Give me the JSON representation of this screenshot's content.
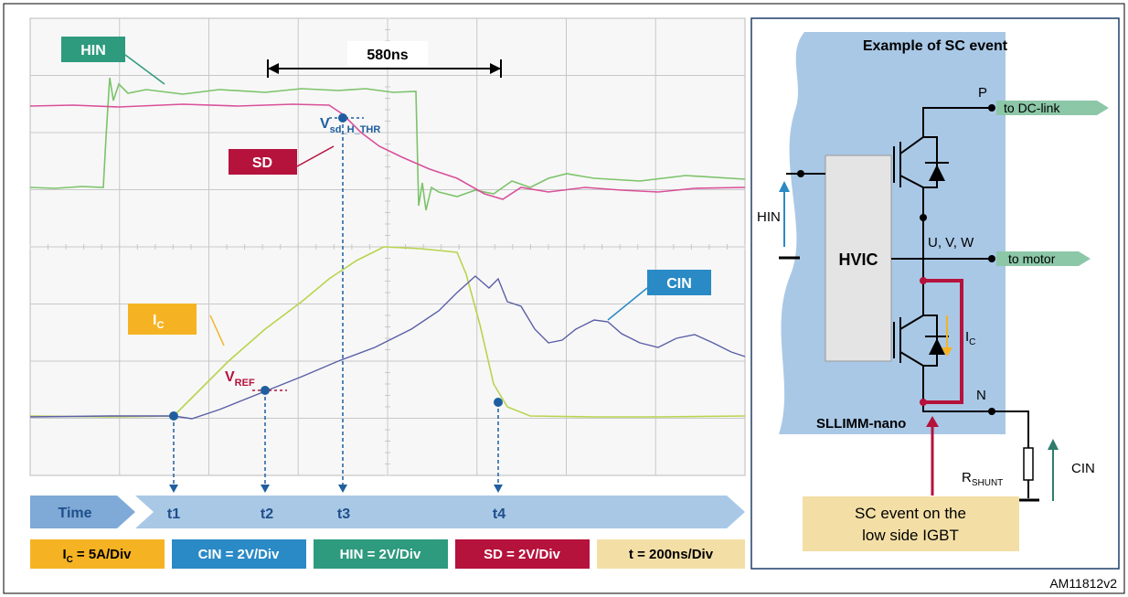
{
  "scope": {
    "hin_label": "HIN",
    "width_label": "580ns",
    "vsd": {
      "main": "V",
      "sub": "sd_H_THR"
    },
    "sd_label": "SD",
    "cin_label": "CIN",
    "ic": {
      "main": "I",
      "sub": "C"
    },
    "vref": {
      "main": "V",
      "sub": "REF"
    }
  },
  "timeline": {
    "label": "Time",
    "ticks": [
      "t1",
      "t2",
      "t3",
      "t4"
    ]
  },
  "scales": [
    {
      "main": "I",
      "sub": "C",
      "tail": "= 5A/Div"
    },
    {
      "text": "CIN = 2V/Div"
    },
    {
      "text": "HIN = 2V/Div"
    },
    {
      "text": "SD = 2V/Div"
    },
    {
      "text": "t = 200ns/Div"
    }
  ],
  "circuit": {
    "title": "Example of SC event",
    "p": "P",
    "dc_link": "to DC-link",
    "hin": "HIN",
    "hvic": "HVIC",
    "uvw": "U, V, W",
    "motor": "to motor",
    "ic": {
      "main": "I",
      "sub": "C"
    },
    "n": "N",
    "module": "SLLIMM-nano",
    "rshunt": {
      "main": "R",
      "sub": "SHUNT"
    },
    "cin": "CIN",
    "callout": [
      "SC event on the",
      "low side IGBT"
    ]
  },
  "figure_id": "AM11812v2"
}
